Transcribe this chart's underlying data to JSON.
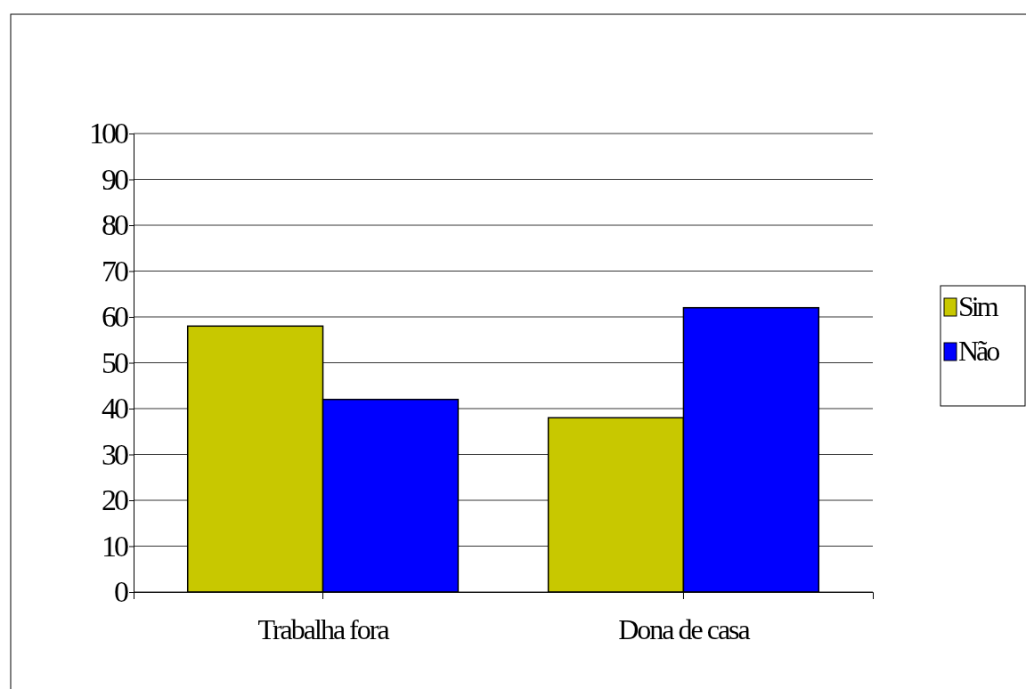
{
  "chart_data": {
    "type": "bar",
    "categories": [
      "Trabalha fora",
      "Dona de casa"
    ],
    "series": [
      {
        "name": "Sim",
        "color": "#c8c800",
        "values": [
          58,
          38
        ]
      },
      {
        "name": "Não",
        "color": "#0000ff",
        "values": [
          42,
          62
        ]
      }
    ],
    "ylim": [
      0,
      100
    ],
    "yticks": [
      0,
      10,
      20,
      30,
      40,
      50,
      60,
      70,
      80,
      90,
      100
    ],
    "grid": "y",
    "legend": "right"
  }
}
